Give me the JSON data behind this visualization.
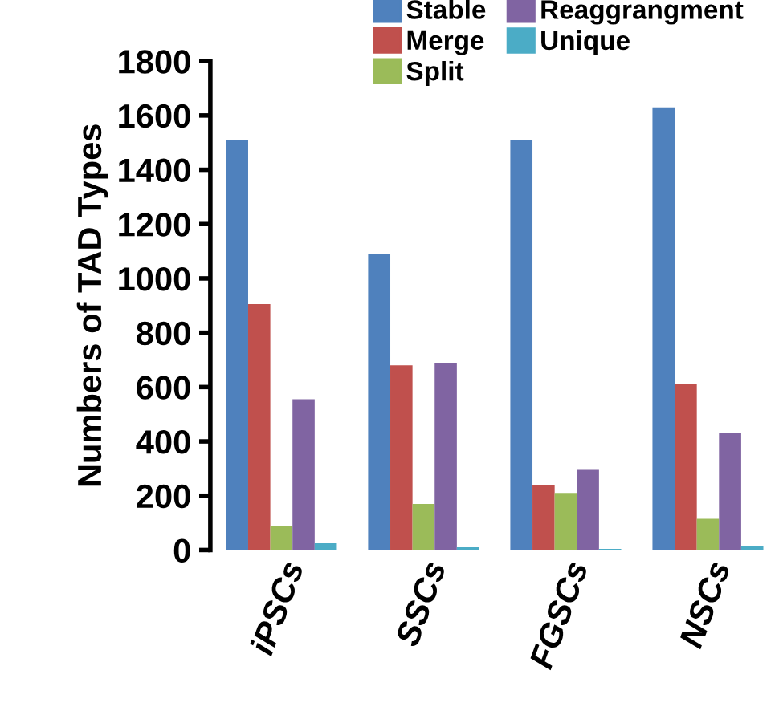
{
  "chart_data": {
    "type": "bar",
    "ylabel": "Numbers of TAD Types",
    "categories": [
      "iPSCs",
      "SSCs",
      "FGSCs",
      "NSCs"
    ],
    "series": [
      {
        "name": "Stable",
        "color": "#4f81bd",
        "values": [
          1510,
          1090,
          1510,
          1630
        ]
      },
      {
        "name": "Merge",
        "color": "#c0504d",
        "values": [
          905,
          680,
          240,
          610
        ]
      },
      {
        "name": "Split",
        "color": "#9bbb59",
        "values": [
          90,
          170,
          210,
          115
        ]
      },
      {
        "name": "Reaggrangment",
        "color": "#8064a2",
        "values": [
          555,
          690,
          295,
          430
        ]
      },
      {
        "name": "Unique",
        "color": "#4bacc6",
        "values": [
          25,
          10,
          4,
          16
        ]
      }
    ],
    "ylim": [
      0,
      1800
    ],
    "yticks": [
      0,
      200,
      400,
      600,
      800,
      1000,
      1200,
      1400,
      1600,
      1800
    ],
    "grid": false,
    "legend": "top right"
  }
}
